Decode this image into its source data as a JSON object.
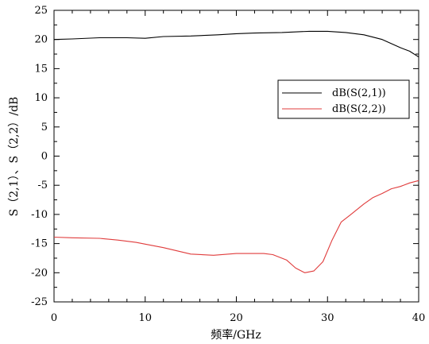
{
  "chart_data": {
    "type": "line",
    "xlabel": "频率/GHz",
    "ylabel": "S（2,1）、S（2,2）/dB",
    "xlim": [
      0,
      40
    ],
    "ylim": [
      -25,
      25
    ],
    "x_ticks": [
      0,
      10,
      20,
      30,
      40
    ],
    "y_ticks": [
      -25,
      -20,
      -15,
      -10,
      -5,
      0,
      5,
      10,
      15,
      20,
      25
    ],
    "y_tick_labels": [
      "-25",
      "-20",
      "-15",
      "-10",
      "-5",
      "0",
      "5",
      "10",
      "15",
      "20",
      "25"
    ],
    "grid": false,
    "legend_position": "center-right",
    "series": [
      {
        "name": "dB(S(2,1))",
        "color": "#000000",
        "x": [
          0,
          2,
          5,
          8,
          10,
          12,
          15,
          18,
          20,
          22,
          25,
          28,
          30,
          32,
          34,
          36,
          38,
          39,
          40
        ],
        "y": [
          20.0,
          20.1,
          20.3,
          20.3,
          20.2,
          20.5,
          20.6,
          20.8,
          21.0,
          21.1,
          21.2,
          21.4,
          21.4,
          21.2,
          20.8,
          20.0,
          18.6,
          18.0,
          17.0
        ]
      },
      {
        "name": "dB(S(2,2))",
        "color": "#e03c3c",
        "x": [
          0,
          2,
          5,
          7,
          9,
          10,
          12,
          15,
          17.5,
          20,
          23,
          24,
          25.5,
          26.5,
          27.5,
          28.5,
          29.5,
          30.5,
          31.5,
          32.5,
          34,
          35,
          36,
          37,
          38,
          39,
          40
        ],
        "y": [
          -13.9,
          -14.0,
          -14.1,
          -14.4,
          -14.8,
          -15.1,
          -15.7,
          -16.8,
          -17.0,
          -16.7,
          -16.7,
          -16.9,
          -17.8,
          -19.2,
          -20.0,
          -19.7,
          -18.1,
          -14.4,
          -11.3,
          -10.1,
          -8.2,
          -7.1,
          -6.4,
          -5.6,
          -5.2,
          -4.6,
          -4.2
        ]
      }
    ]
  }
}
